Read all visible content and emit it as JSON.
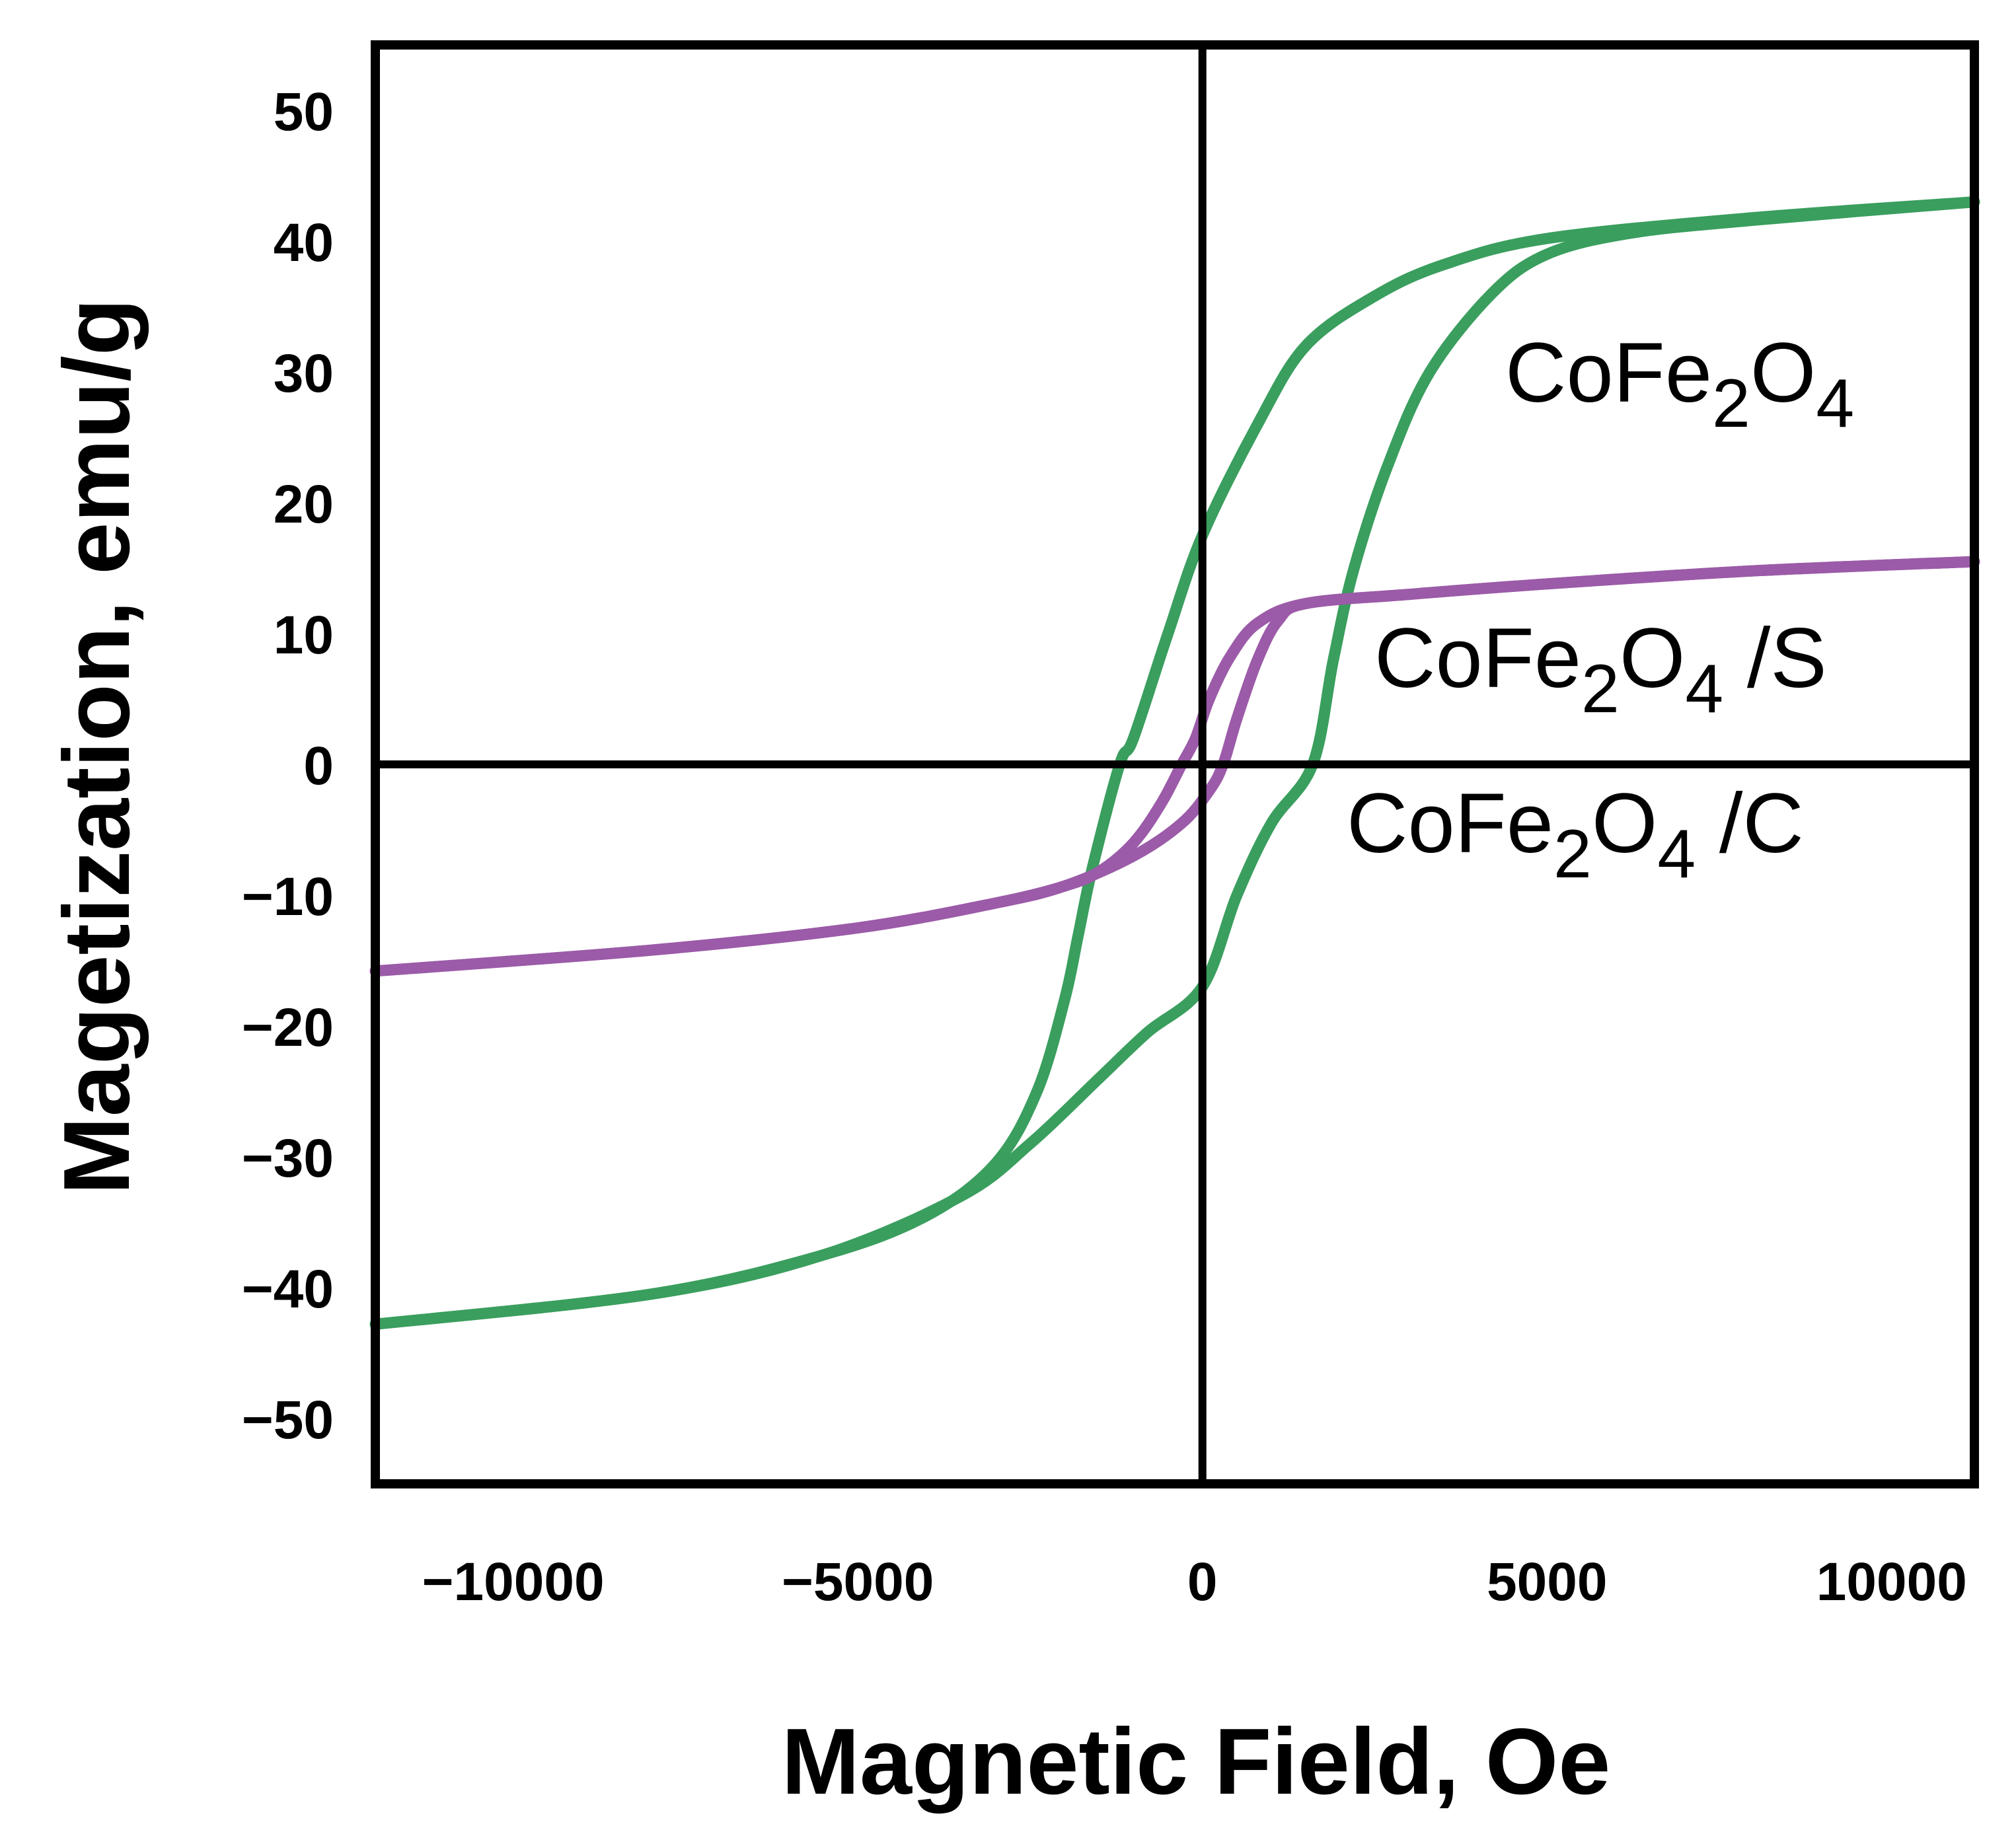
{
  "chart_data": {
    "type": "line",
    "title": "",
    "xlabel": "Magnetic Field, Oe",
    "ylabel": "Magetization, emu/g",
    "xlim": [
      -12000,
      11200
    ],
    "ylim": [
      -55,
      55
    ],
    "x_ticks": [
      -10000,
      -5000,
      0,
      5000,
      10000
    ],
    "x_tick_labels": [
      "−10000",
      "−5000",
      "0",
      "5000",
      "10000"
    ],
    "y_ticks": [
      50,
      40,
      30,
      20,
      10,
      0,
      -10,
      -20,
      -30,
      -40,
      -50
    ],
    "y_tick_labels": [
      "50",
      "40",
      "30",
      "20",
      "10",
      "0",
      "−10",
      "−20",
      "−30",
      "−40",
      "−50"
    ],
    "grid": false,
    "zero_lines": true,
    "series": [
      {
        "name": "CoFe2O4",
        "color": "#3a9e5e",
        "branch_descending": [
          [
            11200,
            43
          ],
          [
            8000,
            41.8
          ],
          [
            5000,
            40.2
          ],
          [
            3500,
            38.2
          ],
          [
            2500,
            35.8
          ],
          [
            1500,
            32
          ],
          [
            800,
            26
          ],
          [
            0,
            17.5
          ],
          [
            -500,
            10
          ],
          [
            -1000,
            2
          ],
          [
            -1200,
            0
          ],
          [
            -1600,
            -8
          ],
          [
            -1800,
            -13
          ],
          [
            -2000,
            -18
          ],
          [
            -2400,
            -25
          ],
          [
            -3000,
            -30.5
          ],
          [
            -4000,
            -34.5
          ],
          [
            -5500,
            -37.5
          ],
          [
            -8000,
            -40.5
          ],
          [
            -12000,
            -42.8
          ]
        ],
        "branch_ascending": [
          [
            -12000,
            -42.8
          ],
          [
            -8000,
            -40.5
          ],
          [
            -5500,
            -37.5
          ],
          [
            -3500,
            -33
          ],
          [
            -2500,
            -29
          ],
          [
            -1500,
            -24
          ],
          [
            -800,
            -20.5
          ],
          [
            0,
            -17
          ],
          [
            500,
            -10
          ],
          [
            1000,
            -4.5
          ],
          [
            1600,
            0
          ],
          [
            1900,
            8
          ],
          [
            2200,
            15
          ],
          [
            2700,
            23
          ],
          [
            3300,
            30
          ],
          [
            4200,
            36
          ],
          [
            5000,
            39
          ],
          [
            6200,
            40.6
          ],
          [
            8000,
            41.6
          ],
          [
            11200,
            43
          ]
        ],
        "label_main": "CoFe",
        "label_sub1": "2",
        "label_mid": "O",
        "label_sub2": "4",
        "label_suffix": ""
      },
      {
        "name": "CoFe2O4 /S",
        "color": "#9b5ba8",
        "branch_descending": [
          [
            11200,
            15.5
          ],
          [
            8000,
            14.8
          ],
          [
            5000,
            13.8
          ],
          [
            3000,
            13
          ],
          [
            1500,
            12.3
          ],
          [
            800,
            10.8
          ],
          [
            400,
            8.2
          ],
          [
            100,
            5
          ],
          [
            -100,
            2
          ],
          [
            -300,
            0
          ],
          [
            -600,
            -3
          ],
          [
            -1000,
            -6
          ],
          [
            -1500,
            -8.2
          ],
          [
            -2000,
            -9.3
          ],
          [
            -3000,
            -10.6
          ],
          [
            -5000,
            -12.5
          ],
          [
            -8000,
            -14.2
          ],
          [
            -12000,
            -15.8
          ]
        ],
        "branch_ascending": [
          [
            -12000,
            -15.8
          ],
          [
            -8000,
            -14.2
          ],
          [
            -5000,
            -12.5
          ],
          [
            -3000,
            -10.6
          ],
          [
            -2000,
            -9.3
          ],
          [
            -1000,
            -7
          ],
          [
            -300,
            -4.5
          ],
          [
            100,
            -2
          ],
          [
            300,
            0
          ],
          [
            500,
            3.5
          ],
          [
            800,
            8
          ],
          [
            1100,
            11
          ],
          [
            1500,
            12.3
          ],
          [
            3000,
            13
          ],
          [
            5000,
            13.8
          ],
          [
            8000,
            14.8
          ],
          [
            11200,
            15.5
          ]
        ],
        "label_main": "CoFe",
        "label_sub1": "2",
        "label_mid": "O",
        "label_sub2": "4",
        "label_suffix": " /S"
      },
      {
        "name": "CoFe2O4 /C",
        "color": "#9b5ba8",
        "branch_descending": [],
        "branch_ascending": [],
        "label_main": "CoFe",
        "label_sub1": "2",
        "label_mid": "O",
        "label_sub2": "4",
        "label_suffix": " /C"
      }
    ]
  }
}
